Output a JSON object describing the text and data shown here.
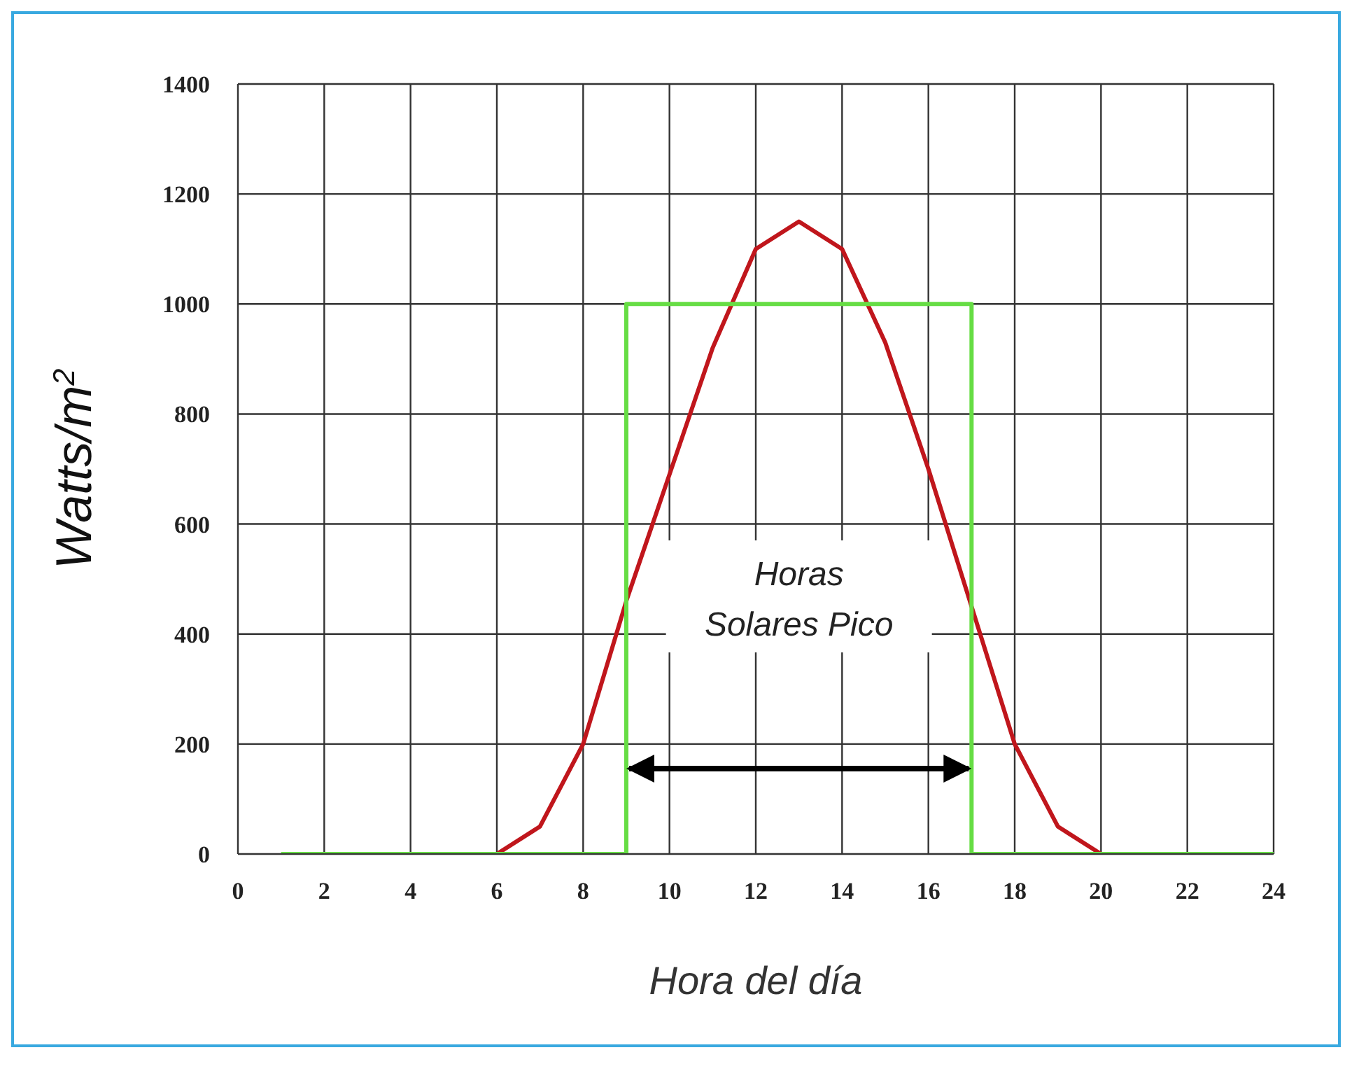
{
  "chart_data": {
    "type": "line",
    "xlabel": "Hora del día",
    "ylabel": "Watts/m$^{2}$",
    "xlim": [
      0,
      24
    ],
    "xticks": [
      0,
      2,
      4,
      6,
      8,
      10,
      12,
      14,
      16,
      18,
      20,
      22,
      24
    ],
    "ylim": [
      0,
      1400
    ],
    "yticks": [
      0,
      200,
      400,
      600,
      800,
      1000,
      1200,
      1400
    ],
    "grid": true,
    "legend": false,
    "marker": "none",
    "series": [
      {
        "color": "#c0161c",
        "x": [
          6,
          7,
          8,
          9,
          10,
          11,
          12,
          13,
          14,
          15,
          16,
          17,
          18,
          19,
          20
        ],
        "values": [
          0,
          50,
          200,
          460,
          690,
          920,
          1100,
          1150,
          1100,
          930,
          700,
          450,
          200,
          50,
          0
        ]
      },
      {
        "type": "step",
        "color": "#66dd44",
        "x": [
          1,
          9,
          17,
          24
        ],
        "values": [
          0,
          1000,
          0,
          0
        ]
      }
    ],
    "annotations": [
      "Horas Solares Pico"
    ]
  }
}
